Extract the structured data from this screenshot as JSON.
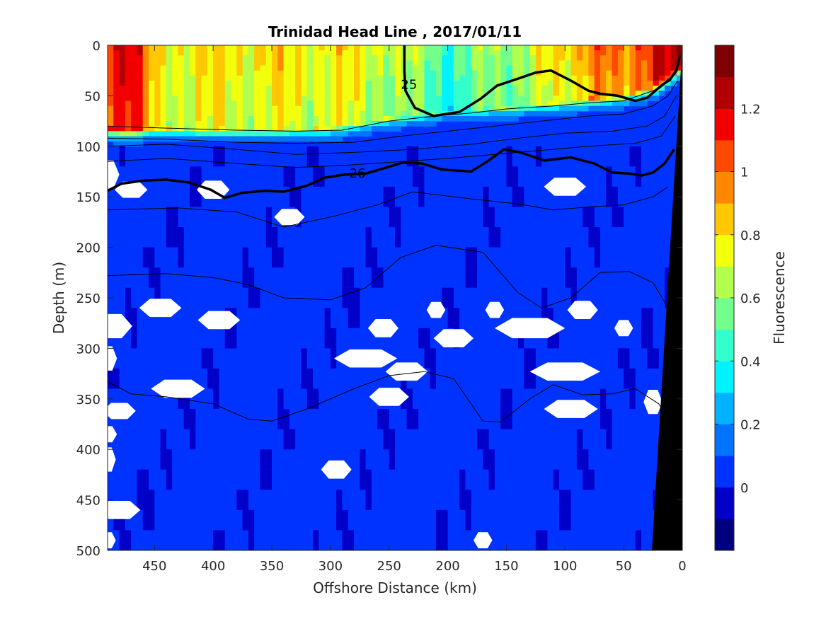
{
  "chart_data": {
    "type": "heatmap",
    "title": "Trinidad Head Line , 2017/01/11",
    "xlabel": "Offshore Distance (km)",
    "ylabel": "Depth (m)",
    "xlim": [
      490,
      0
    ],
    "ylim": [
      0,
      500
    ],
    "x_ticks": [
      450,
      400,
      350,
      300,
      250,
      200,
      150,
      100,
      50,
      0
    ],
    "y_ticks": [
      0,
      50,
      100,
      150,
      200,
      250,
      300,
      350,
      400,
      450,
      500
    ],
    "colorbar": {
      "label": "Fluorescence",
      "range": [
        -0.2,
        1.4
      ],
      "levels": [
        -0.2,
        -0.1,
        0,
        0.1,
        0.2,
        0.3,
        0.4,
        0.5,
        0.6,
        0.7,
        0.8,
        0.9,
        1.0,
        1.1,
        1.2,
        1.3,
        1.4
      ],
      "tick_values": [
        0,
        0.2,
        0.4,
        0.6,
        0.8,
        1,
        1.2
      ],
      "tick_labels": [
        "0",
        "0.2",
        "0.4",
        "0.6",
        "0.8",
        "1",
        "1.2"
      ],
      "colors": [
        "#00007f",
        "#0000c8",
        "#0033ff",
        "#0073ff",
        "#00b2ff",
        "#00f2ff",
        "#33ffcc",
        "#73ff8c",
        "#b2ff4d",
        "#f2ff0d",
        "#ffc800",
        "#ff8800",
        "#ff4800",
        "#f20000",
        "#b20000",
        "#7f0000"
      ]
    },
    "surface_layer": [
      {
        "x": 490,
        "mld": 82,
        "peak": 1.2
      },
      {
        "x": 470,
        "mld": 84,
        "peak": 1.25
      },
      {
        "x": 450,
        "mld": 82,
        "peak": 0.8
      },
      {
        "x": 400,
        "mld": 84,
        "peak": 0.8
      },
      {
        "x": 350,
        "mld": 84,
        "peak": 0.8
      },
      {
        "x": 300,
        "mld": 82,
        "peak": 0.8
      },
      {
        "x": 250,
        "mld": 72,
        "peak": 0.72
      },
      {
        "x": 200,
        "mld": 66,
        "peak": 0.5
      },
      {
        "x": 150,
        "mld": 62,
        "peak": 0.65
      },
      {
        "x": 100,
        "mld": 56,
        "peak": 0.8
      },
      {
        "x": 75,
        "mld": 52,
        "peak": 1.05
      },
      {
        "x": 50,
        "mld": 50,
        "peak": 0.9
      },
      {
        "x": 20,
        "mld": 38,
        "peak": 1.3
      },
      {
        "x": 0,
        "mld": 20,
        "peak": 1.2
      }
    ],
    "density_contours": [
      {
        "label": "25",
        "points": [
          [
            237,
            0
          ],
          [
            237,
            25
          ],
          [
            236,
            45
          ],
          [
            228,
            62
          ],
          [
            212,
            70
          ],
          [
            190,
            66
          ],
          [
            172,
            53
          ],
          [
            158,
            40
          ],
          [
            140,
            33
          ],
          [
            125,
            27
          ],
          [
            112,
            25
          ],
          [
            95,
            35
          ],
          [
            80,
            45
          ],
          [
            70,
            48
          ],
          [
            55,
            50
          ],
          [
            40,
            55
          ],
          [
            30,
            52
          ],
          [
            20,
            42
          ],
          [
            10,
            33
          ],
          [
            5,
            25
          ],
          [
            2,
            10
          ]
        ],
        "label_x": 233,
        "label_y": 38
      },
      {
        "label": "26",
        "points": [
          [
            490,
            144
          ],
          [
            478,
            137
          ],
          [
            460,
            134
          ],
          [
            440,
            133
          ],
          [
            420,
            136
          ],
          [
            402,
            143
          ],
          [
            390,
            151
          ],
          [
            375,
            146
          ],
          [
            355,
            144
          ],
          [
            340,
            145
          ],
          [
            320,
            139
          ],
          [
            305,
            131
          ],
          [
            288,
            128
          ],
          [
            270,
            127
          ],
          [
            255,
            122
          ],
          [
            238,
            116
          ],
          [
            222,
            117
          ],
          [
            205,
            123
          ],
          [
            180,
            125
          ],
          [
            165,
            114
          ],
          [
            152,
            103
          ],
          [
            138,
            106
          ],
          [
            118,
            114
          ],
          [
            95,
            111
          ],
          [
            75,
            117
          ],
          [
            60,
            126
          ],
          [
            45,
            127
          ],
          [
            35,
            129
          ],
          [
            25,
            126
          ],
          [
            15,
            117
          ],
          [
            7,
            103
          ]
        ],
        "label_x": 277,
        "label_y": 126
      }
    ],
    "thin_contours": [
      [
        [
          490,
          80
        ],
        [
          440,
          82
        ],
        [
          380,
          84
        ],
        [
          330,
          85
        ],
        [
          290,
          84
        ],
        [
          250,
          75
        ],
        [
          210,
          70
        ],
        [
          180,
          67
        ],
        [
          150,
          63
        ],
        [
          110,
          60
        ],
        [
          80,
          57
        ],
        [
          50,
          55
        ],
        [
          25,
          45
        ],
        [
          10,
          35
        ],
        [
          3,
          20
        ]
      ],
      [
        [
          490,
          92
        ],
        [
          440,
          93
        ],
        [
          380,
          96
        ],
        [
          330,
          97
        ],
        [
          280,
          96
        ],
        [
          240,
          90
        ],
        [
          200,
          85
        ],
        [
          160,
          80
        ],
        [
          120,
          75
        ],
        [
          80,
          70
        ],
        [
          50,
          68
        ],
        [
          25,
          60
        ],
        [
          12,
          50
        ],
        [
          4,
          35
        ]
      ],
      [
        [
          490,
          100
        ],
        [
          440,
          98
        ],
        [
          380,
          103
        ],
        [
          330,
          108
        ],
        [
          280,
          106
        ],
        [
          230,
          103
        ],
        [
          180,
          98
        ],
        [
          140,
          92
        ],
        [
          100,
          87
        ],
        [
          60,
          85
        ],
        [
          30,
          80
        ],
        [
          15,
          70
        ],
        [
          5,
          50
        ]
      ],
      [
        [
          490,
          115
        ],
        [
          440,
          112
        ],
        [
          380,
          117
        ],
        [
          330,
          121
        ],
        [
          290,
          119
        ],
        [
          250,
          116
        ],
        [
          200,
          112
        ],
        [
          160,
          108
        ],
        [
          120,
          104
        ],
        [
          80,
          100
        ],
        [
          40,
          97
        ],
        [
          18,
          90
        ],
        [
          6,
          70
        ]
      ],
      [
        [
          490,
          163
        ],
        [
          430,
          161
        ],
        [
          380,
          165
        ],
        [
          340,
          180
        ],
        [
          300,
          170
        ],
        [
          260,
          158
        ],
        [
          230,
          145
        ],
        [
          180,
          152
        ],
        [
          140,
          157
        ],
        [
          110,
          163
        ],
        [
          80,
          160
        ],
        [
          50,
          158
        ],
        [
          25,
          150
        ],
        [
          12,
          140
        ]
      ],
      [
        [
          490,
          228
        ],
        [
          440,
          226
        ],
        [
          400,
          230
        ],
        [
          370,
          237
        ],
        [
          340,
          250
        ],
        [
          300,
          252
        ],
        [
          270,
          240
        ],
        [
          240,
          210
        ],
        [
          210,
          198
        ],
        [
          170,
          205
        ],
        [
          140,
          245
        ],
        [
          120,
          260
        ],
        [
          95,
          250
        ],
        [
          70,
          225
        ],
        [
          45,
          224
        ],
        [
          25,
          235
        ],
        [
          12,
          260
        ]
      ],
      [
        [
          490,
          333
        ],
        [
          470,
          345
        ],
        [
          440,
          348
        ],
        [
          400,
          355
        ],
        [
          370,
          370
        ],
        [
          350,
          372
        ],
        [
          320,
          360
        ],
        [
          280,
          340
        ],
        [
          250,
          327
        ],
        [
          220,
          323
        ],
        [
          195,
          330
        ],
        [
          170,
          372
        ],
        [
          155,
          373
        ],
        [
          130,
          350
        ],
        [
          110,
          336
        ],
        [
          85,
          346
        ],
        [
          60,
          345
        ],
        [
          40,
          340
        ],
        [
          20,
          355
        ],
        [
          12,
          370
        ]
      ]
    ],
    "missing_data_spots": [
      [
        490,
        128,
        10,
        14
      ],
      [
        470,
        143,
        14,
        8
      ],
      [
        400,
        143,
        14,
        9
      ],
      [
        335,
        170,
        13,
        8
      ],
      [
        100,
        140,
        18,
        9
      ],
      [
        445,
        260,
        18,
        9
      ],
      [
        487,
        278,
        18,
        12
      ],
      [
        395,
        272,
        18,
        9
      ],
      [
        255,
        280,
        13,
        9
      ],
      [
        210,
        262,
        8,
        8
      ],
      [
        160,
        262,
        8,
        8
      ],
      [
        85,
        262,
        13,
        9
      ],
      [
        50,
        280,
        8,
        8
      ],
      [
        130,
        280,
        30,
        10
      ],
      [
        195,
        290,
        17,
        9
      ],
      [
        490,
        310,
        8,
        12
      ],
      [
        270,
        310,
        27,
        9
      ],
      [
        235,
        323,
        18,
        9
      ],
      [
        100,
        323,
        30,
        9
      ],
      [
        430,
        340,
        23,
        9
      ],
      [
        250,
        348,
        17,
        9
      ],
      [
        95,
        360,
        23,
        9
      ],
      [
        480,
        362,
        14,
        8
      ],
      [
        490,
        385,
        8,
        8
      ],
      [
        490,
        410,
        7,
        12
      ],
      [
        295,
        420,
        13,
        9
      ],
      [
        480,
        460,
        18,
        9
      ],
      [
        490,
        490,
        7,
        8
      ],
      [
        170,
        490,
        8,
        8
      ],
      [
        25,
        353,
        8,
        12
      ]
    ]
  }
}
